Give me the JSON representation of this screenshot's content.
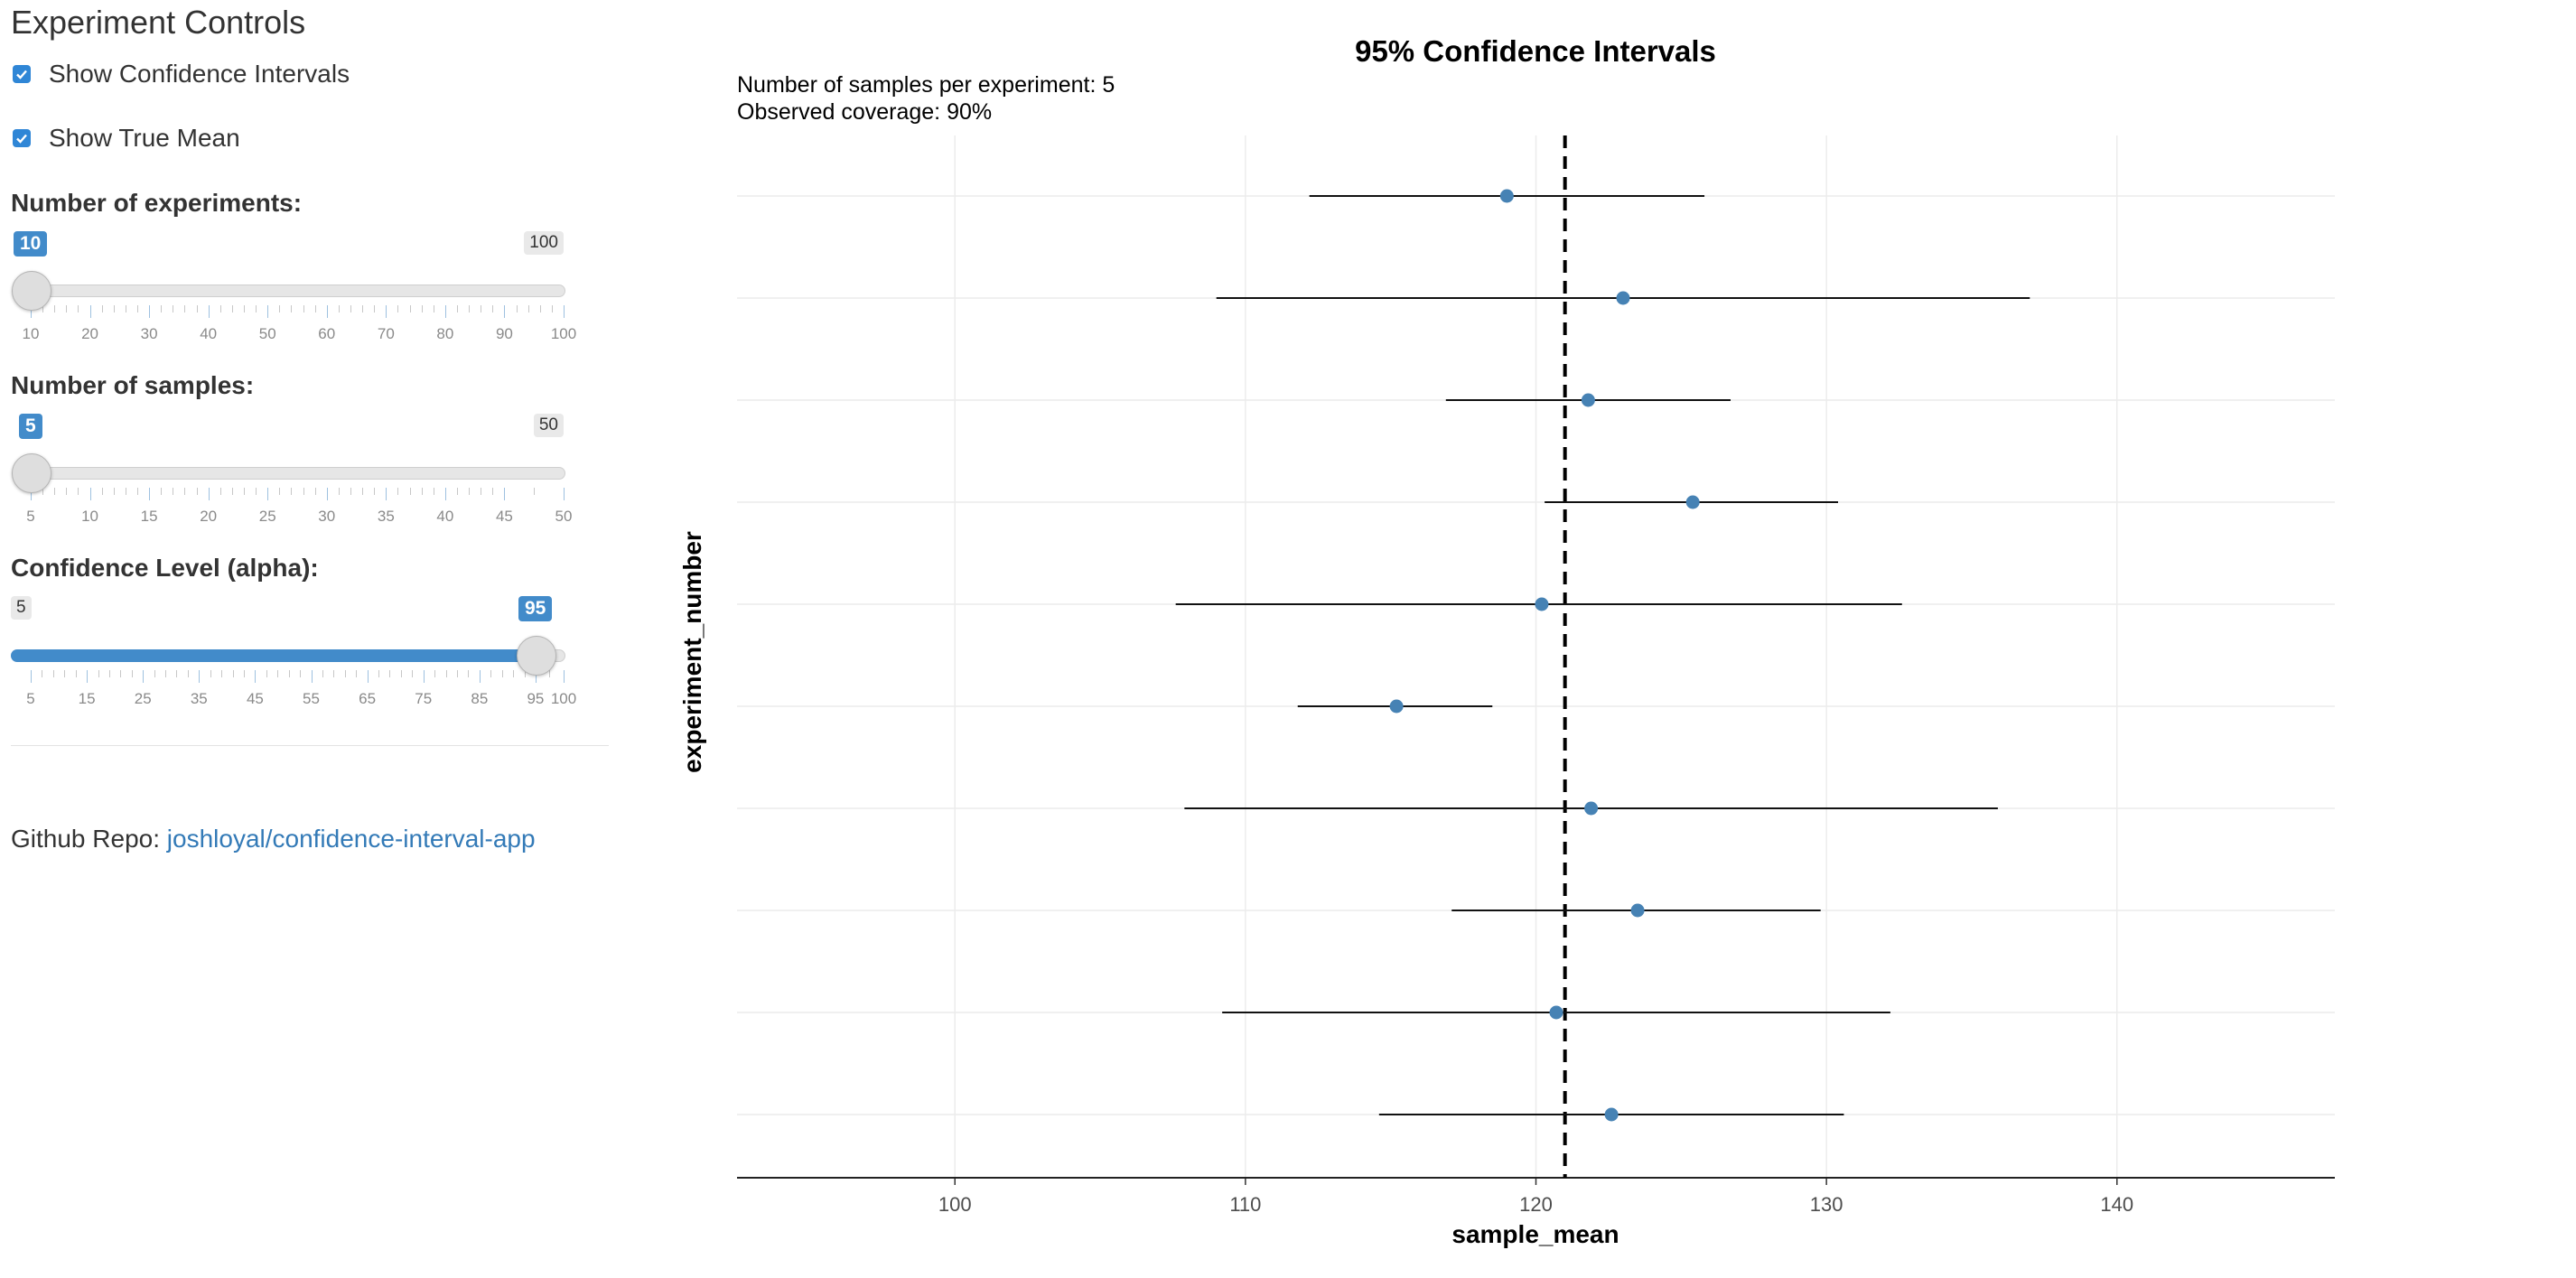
{
  "sidebar": {
    "title": "Experiment Controls",
    "show_ci_label": "Show Confidence Intervals",
    "show_ci_checked": true,
    "show_mean_label": "Show True Mean",
    "show_mean_checked": true,
    "experiments": {
      "label": "Number of experiments:",
      "min": 10,
      "max": 100,
      "value": 10,
      "min_label": "10",
      "max_label": "100",
      "value_label": "10",
      "ticks": [
        "10",
        "20",
        "30",
        "40",
        "50",
        "60",
        "70",
        "80",
        "90",
        "100"
      ]
    },
    "samples": {
      "label": "Number of samples:",
      "min": 5,
      "max": 50,
      "value": 5,
      "min_label": "5",
      "max_label": "50",
      "value_label": "5",
      "ticks": [
        "5",
        "10",
        "15",
        "20",
        "25",
        "30",
        "35",
        "40",
        "45",
        "50"
      ]
    },
    "confidence": {
      "label": "Confidence Level (alpha):",
      "min": 5,
      "max": 100,
      "value": 95,
      "min_label": "5",
      "max_label": "100",
      "value_label": "95",
      "ticks": [
        "5",
        "15",
        "25",
        "35",
        "45",
        "55",
        "65",
        "75",
        "85",
        "95",
        "100"
      ]
    },
    "repo_prefix": "Github Repo: ",
    "repo_link": "joshloyal/confidence-interval-app"
  },
  "chart_data": {
    "type": "scatter",
    "title": "95% Confidence Intervals",
    "subtitle_lines": [
      "Number of samples per experiment: 5",
      "Observed coverage: 90%"
    ],
    "xlabel": "sample_mean",
    "ylabel": "experiment_number",
    "xlim": [
      92.5,
      147.5
    ],
    "xticks": [
      100,
      110,
      120,
      130,
      140
    ],
    "true_mean": 121,
    "grid": true,
    "point_color": "#4682b4",
    "experiments": [
      {
        "mean": 119.0,
        "lower": 112.2,
        "upper": 125.8
      },
      {
        "mean": 123.0,
        "lower": 109.0,
        "upper": 137.0
      },
      {
        "mean": 121.8,
        "lower": 116.9,
        "upper": 126.7
      },
      {
        "mean": 125.4,
        "lower": 120.3,
        "upper": 130.4
      },
      {
        "mean": 120.2,
        "lower": 107.6,
        "upper": 132.6
      },
      {
        "mean": 115.2,
        "lower": 111.8,
        "upper": 118.5
      },
      {
        "mean": 121.9,
        "lower": 107.9,
        "upper": 135.9
      },
      {
        "mean": 123.5,
        "lower": 117.1,
        "upper": 129.8
      },
      {
        "mean": 120.7,
        "lower": 109.2,
        "upper": 132.2
      },
      {
        "mean": 122.6,
        "lower": 114.6,
        "upper": 130.6
      }
    ]
  }
}
